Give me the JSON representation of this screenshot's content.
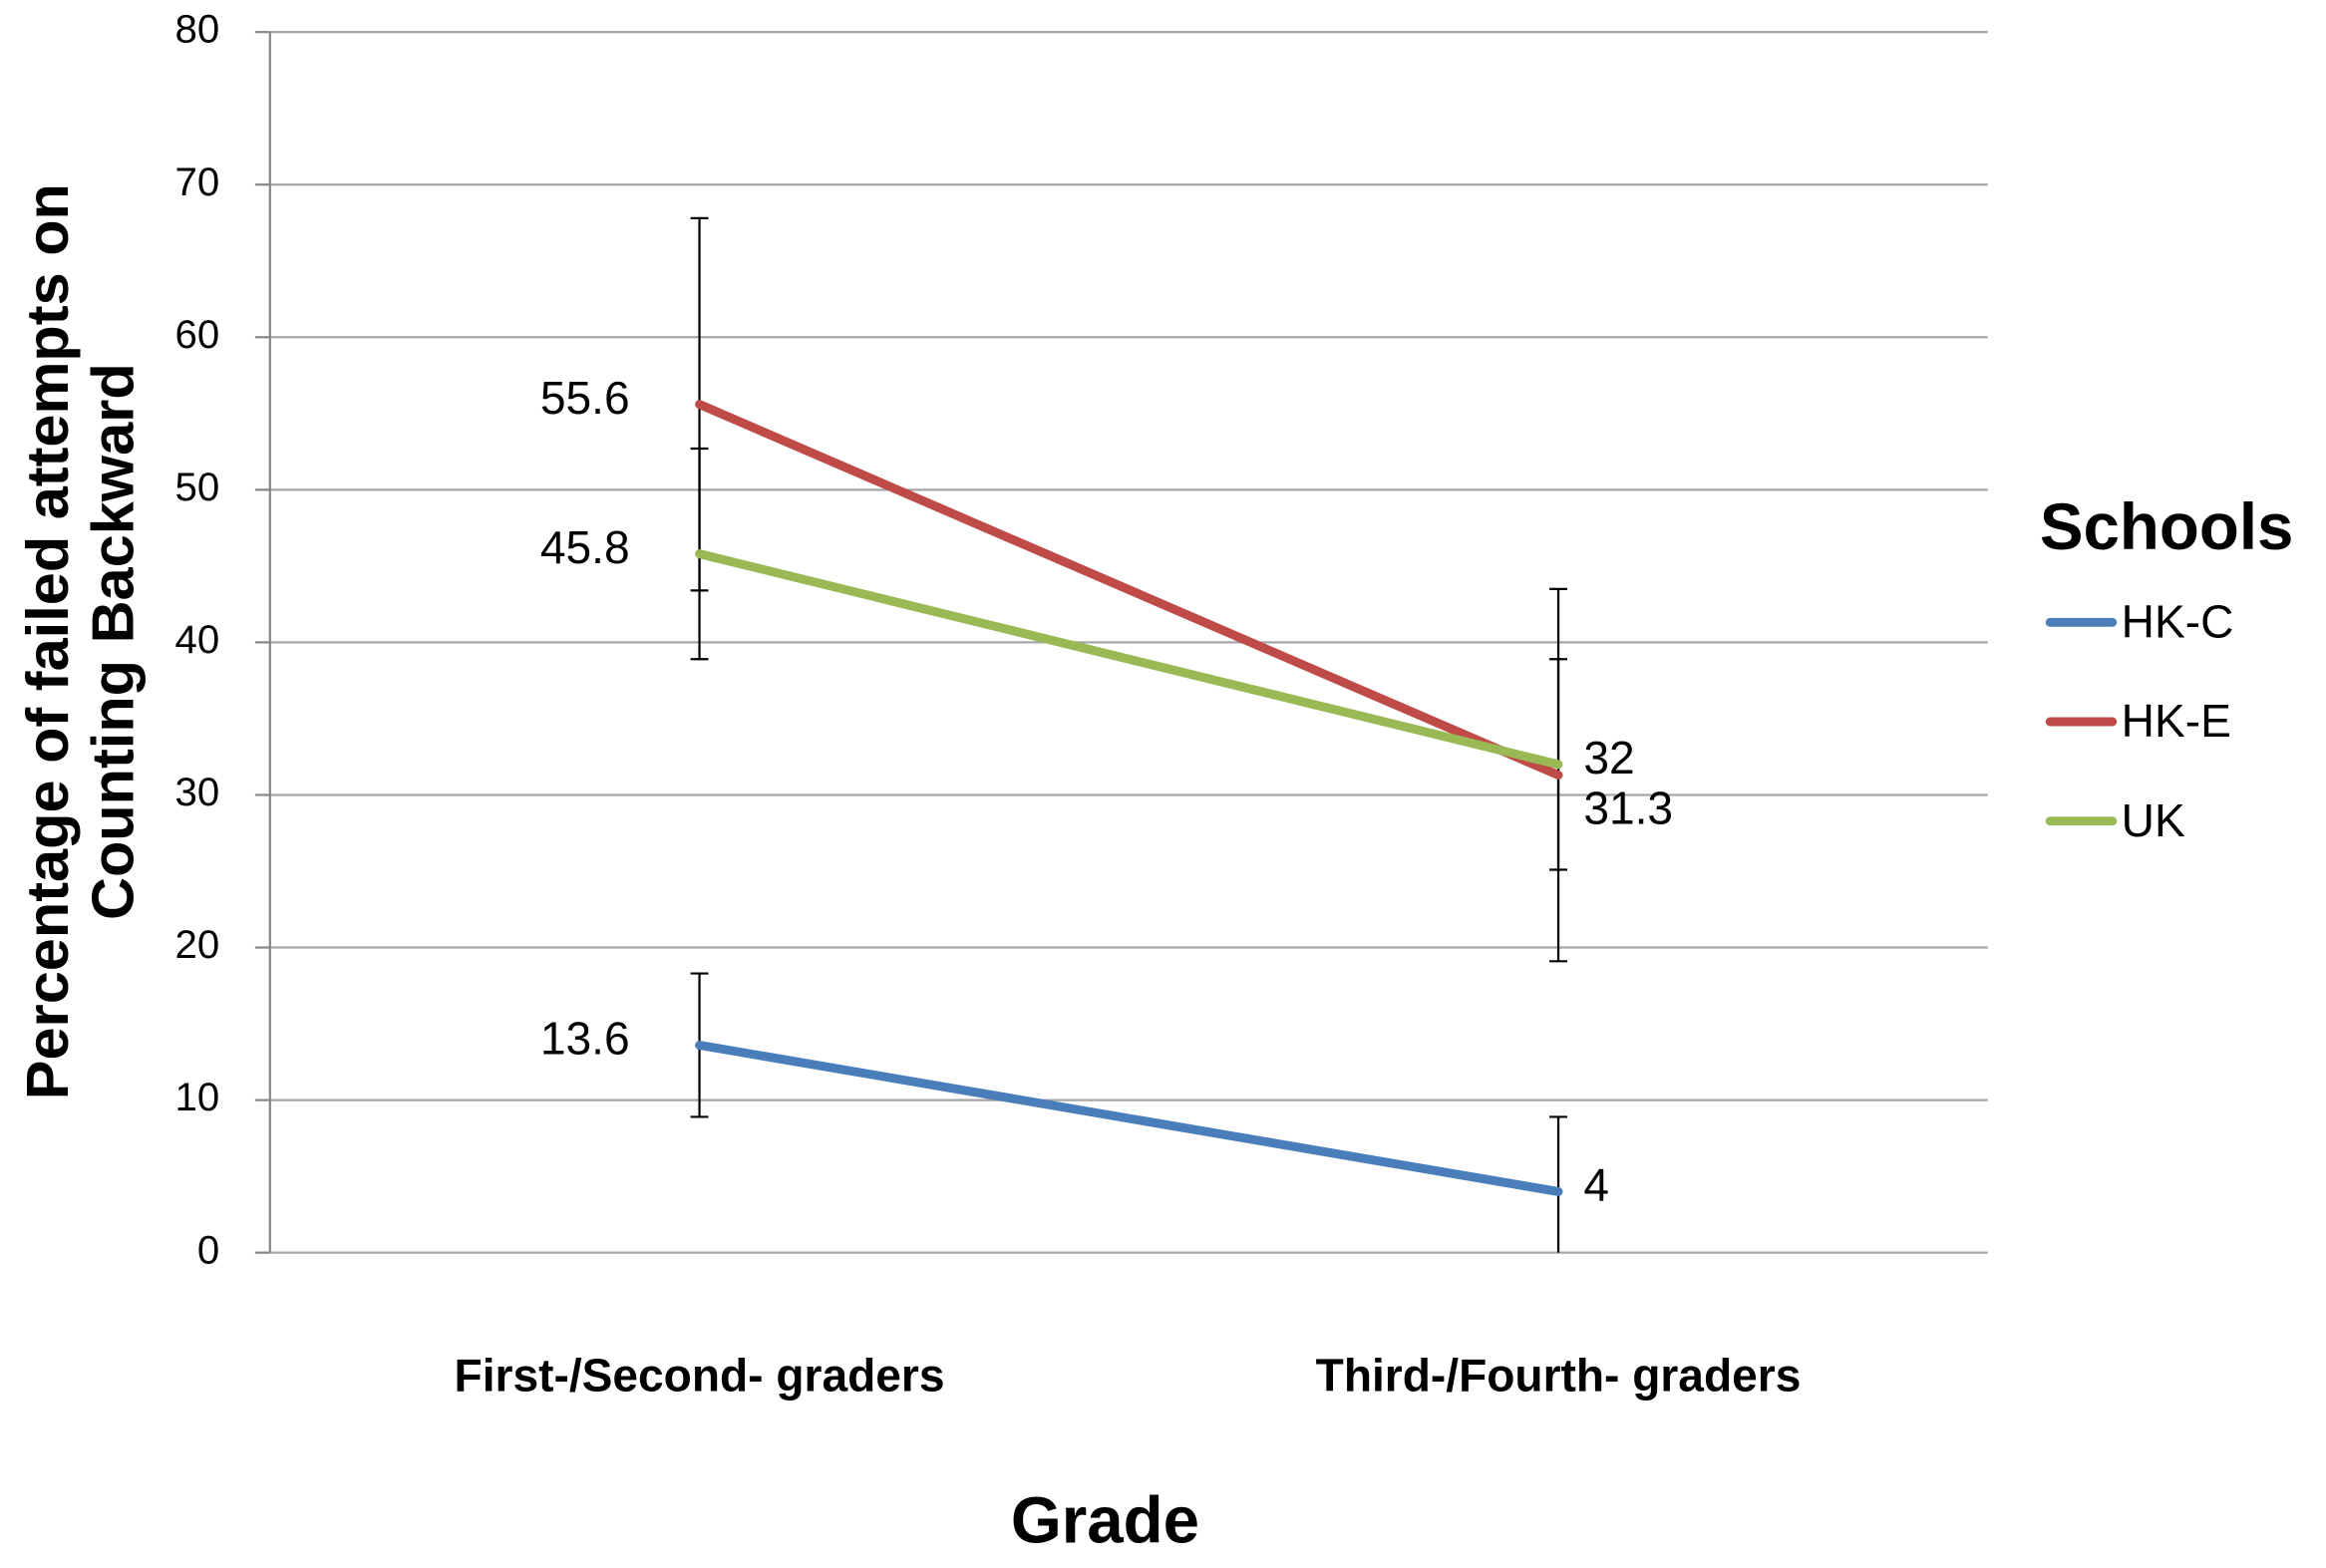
{
  "chart_data": {
    "type": "line",
    "ylabel": [
      "Percentage of failed attempts on",
      "Counting Backward"
    ],
    "xlabel": "Grade",
    "categories": [
      "First-/Second- graders",
      "Third-/Fourth- graders"
    ],
    "series": [
      {
        "name": "HK-C",
        "color": "#4a7ebb",
        "values": [
          13.6,
          4
        ],
        "errors": [
          4.7,
          4.9
        ]
      },
      {
        "name": "HK-E",
        "color": "#be4b48",
        "values": [
          55.6,
          31.3
        ],
        "errors": [
          12.2,
          12.2
        ]
      },
      {
        "name": "UK",
        "color": "#98b954",
        "values": [
          45.8,
          32
        ],
        "errors": [
          6.9,
          6.9
        ]
      }
    ],
    "legend_title": "Schools",
    "legend": "right",
    "ylim": [
      0,
      80
    ],
    "yticks": [
      0,
      10,
      20,
      30,
      40,
      50,
      60,
      70,
      80
    ],
    "grid": true,
    "error_bars": true,
    "data_labels": true
  }
}
